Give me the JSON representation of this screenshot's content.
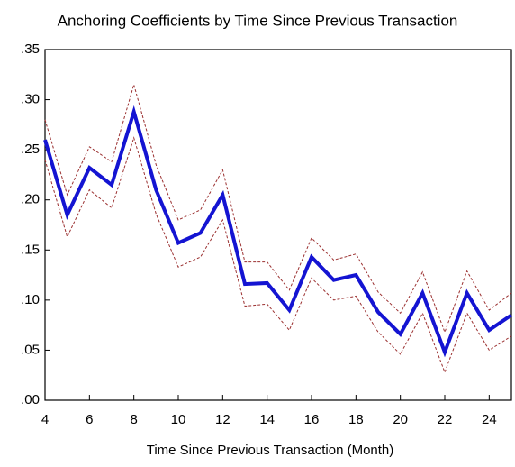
{
  "chart_data": {
    "type": "line",
    "title": "Anchoring Coefficients by Time Since Previous Transaction",
    "x_label": "Time Since Previous Transaction (Month)",
    "x": [
      4,
      5,
      6,
      7,
      8,
      9,
      10,
      11,
      12,
      13,
      14,
      15,
      16,
      17,
      18,
      19,
      20,
      21,
      22,
      23,
      24,
      25
    ],
    "series": [
      {
        "color": "#9b3030",
        "dashed": true,
        "width": 1,
        "values": [
          0.28,
          0.205,
          0.253,
          0.238,
          0.315,
          0.235,
          0.18,
          0.19,
          0.23,
          0.138,
          0.138,
          0.11,
          0.162,
          0.14,
          0.146,
          0.108,
          0.087,
          0.128,
          0.068,
          0.129,
          0.09,
          0.107
        ]
      },
      {
        "color": "#9b3030",
        "dashed": true,
        "width": 1,
        "values": [
          0.24,
          0.163,
          0.21,
          0.192,
          0.262,
          0.186,
          0.133,
          0.143,
          0.18,
          0.094,
          0.096,
          0.07,
          0.122,
          0.1,
          0.104,
          0.068,
          0.046,
          0.087,
          0.028,
          0.087,
          0.05,
          0.064
        ]
      },
      {
        "color": "#1414d2",
        "dashed": false,
        "width": 4,
        "values": [
          0.26,
          0.185,
          0.232,
          0.215,
          0.288,
          0.21,
          0.157,
          0.167,
          0.205,
          0.116,
          0.117,
          0.09,
          0.143,
          0.12,
          0.125,
          0.088,
          0.066,
          0.107,
          0.048,
          0.107,
          0.07,
          0.085
        ]
      }
    ],
    "xlim": [
      4,
      25
    ],
    "xticks": [
      4,
      6,
      8,
      10,
      12,
      14,
      16,
      18,
      20,
      22,
      24
    ],
    "ylim": [
      0,
      0.35
    ],
    "yticks": [
      {
        "value": 0,
        "label": ".00"
      },
      {
        "value": 0.05,
        "label": ".05"
      },
      {
        "value": 0.1,
        "label": ".10"
      },
      {
        "value": 0.15,
        "label": ".15"
      },
      {
        "value": 0.2,
        "label": ".20"
      },
      {
        "value": 0.25,
        "label": ".25"
      },
      {
        "value": 0.3,
        "label": ".30"
      },
      {
        "value": 0.35,
        "label": ".35"
      }
    ]
  }
}
